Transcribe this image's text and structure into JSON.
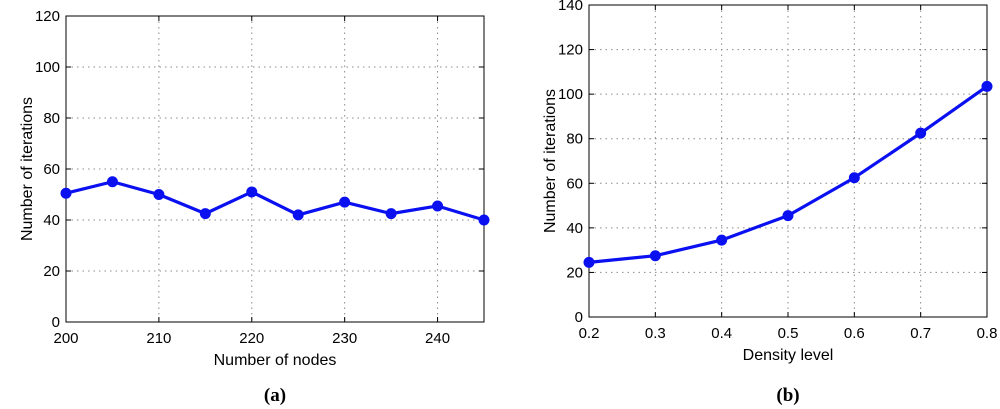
{
  "colors": {
    "series": "#0a10f0",
    "grid": "#8a8a8a",
    "axis": "#000000"
  },
  "chart_data": [
    {
      "type": "line",
      "caption": "(a)",
      "xlabel": "Number of nodes",
      "ylabel": "Number of iterations",
      "xlim": [
        200,
        245
      ],
      "ylim": [
        0,
        120
      ],
      "xticks": [
        200,
        210,
        220,
        230,
        240
      ],
      "yticks": [
        0,
        20,
        40,
        60,
        80,
        100,
        120
      ],
      "grid": true,
      "x": [
        200,
        205,
        210,
        215,
        220,
        225,
        230,
        235,
        240,
        245
      ],
      "series": [
        {
          "values": [
            50.5,
            55,
            50,
            42.5,
            51,
            42,
            47,
            42.5,
            45.5,
            40
          ]
        }
      ]
    },
    {
      "type": "line",
      "caption": "(b)",
      "xlabel": "Density level",
      "ylabel": "Number of iterations",
      "xlim": [
        0.2,
        0.8
      ],
      "ylim": [
        0,
        140
      ],
      "xticks": [
        0.2,
        0.3,
        0.4,
        0.5,
        0.6,
        0.7,
        0.8
      ],
      "yticks": [
        0,
        20,
        40,
        60,
        80,
        100,
        120,
        140
      ],
      "grid": true,
      "x": [
        0.2,
        0.3,
        0.4,
        0.5,
        0.6,
        0.7,
        0.8
      ],
      "series": [
        {
          "values": [
            24.5,
            27.5,
            34.5,
            45.5,
            62.5,
            82.5,
            103.5
          ]
        }
      ]
    }
  ]
}
